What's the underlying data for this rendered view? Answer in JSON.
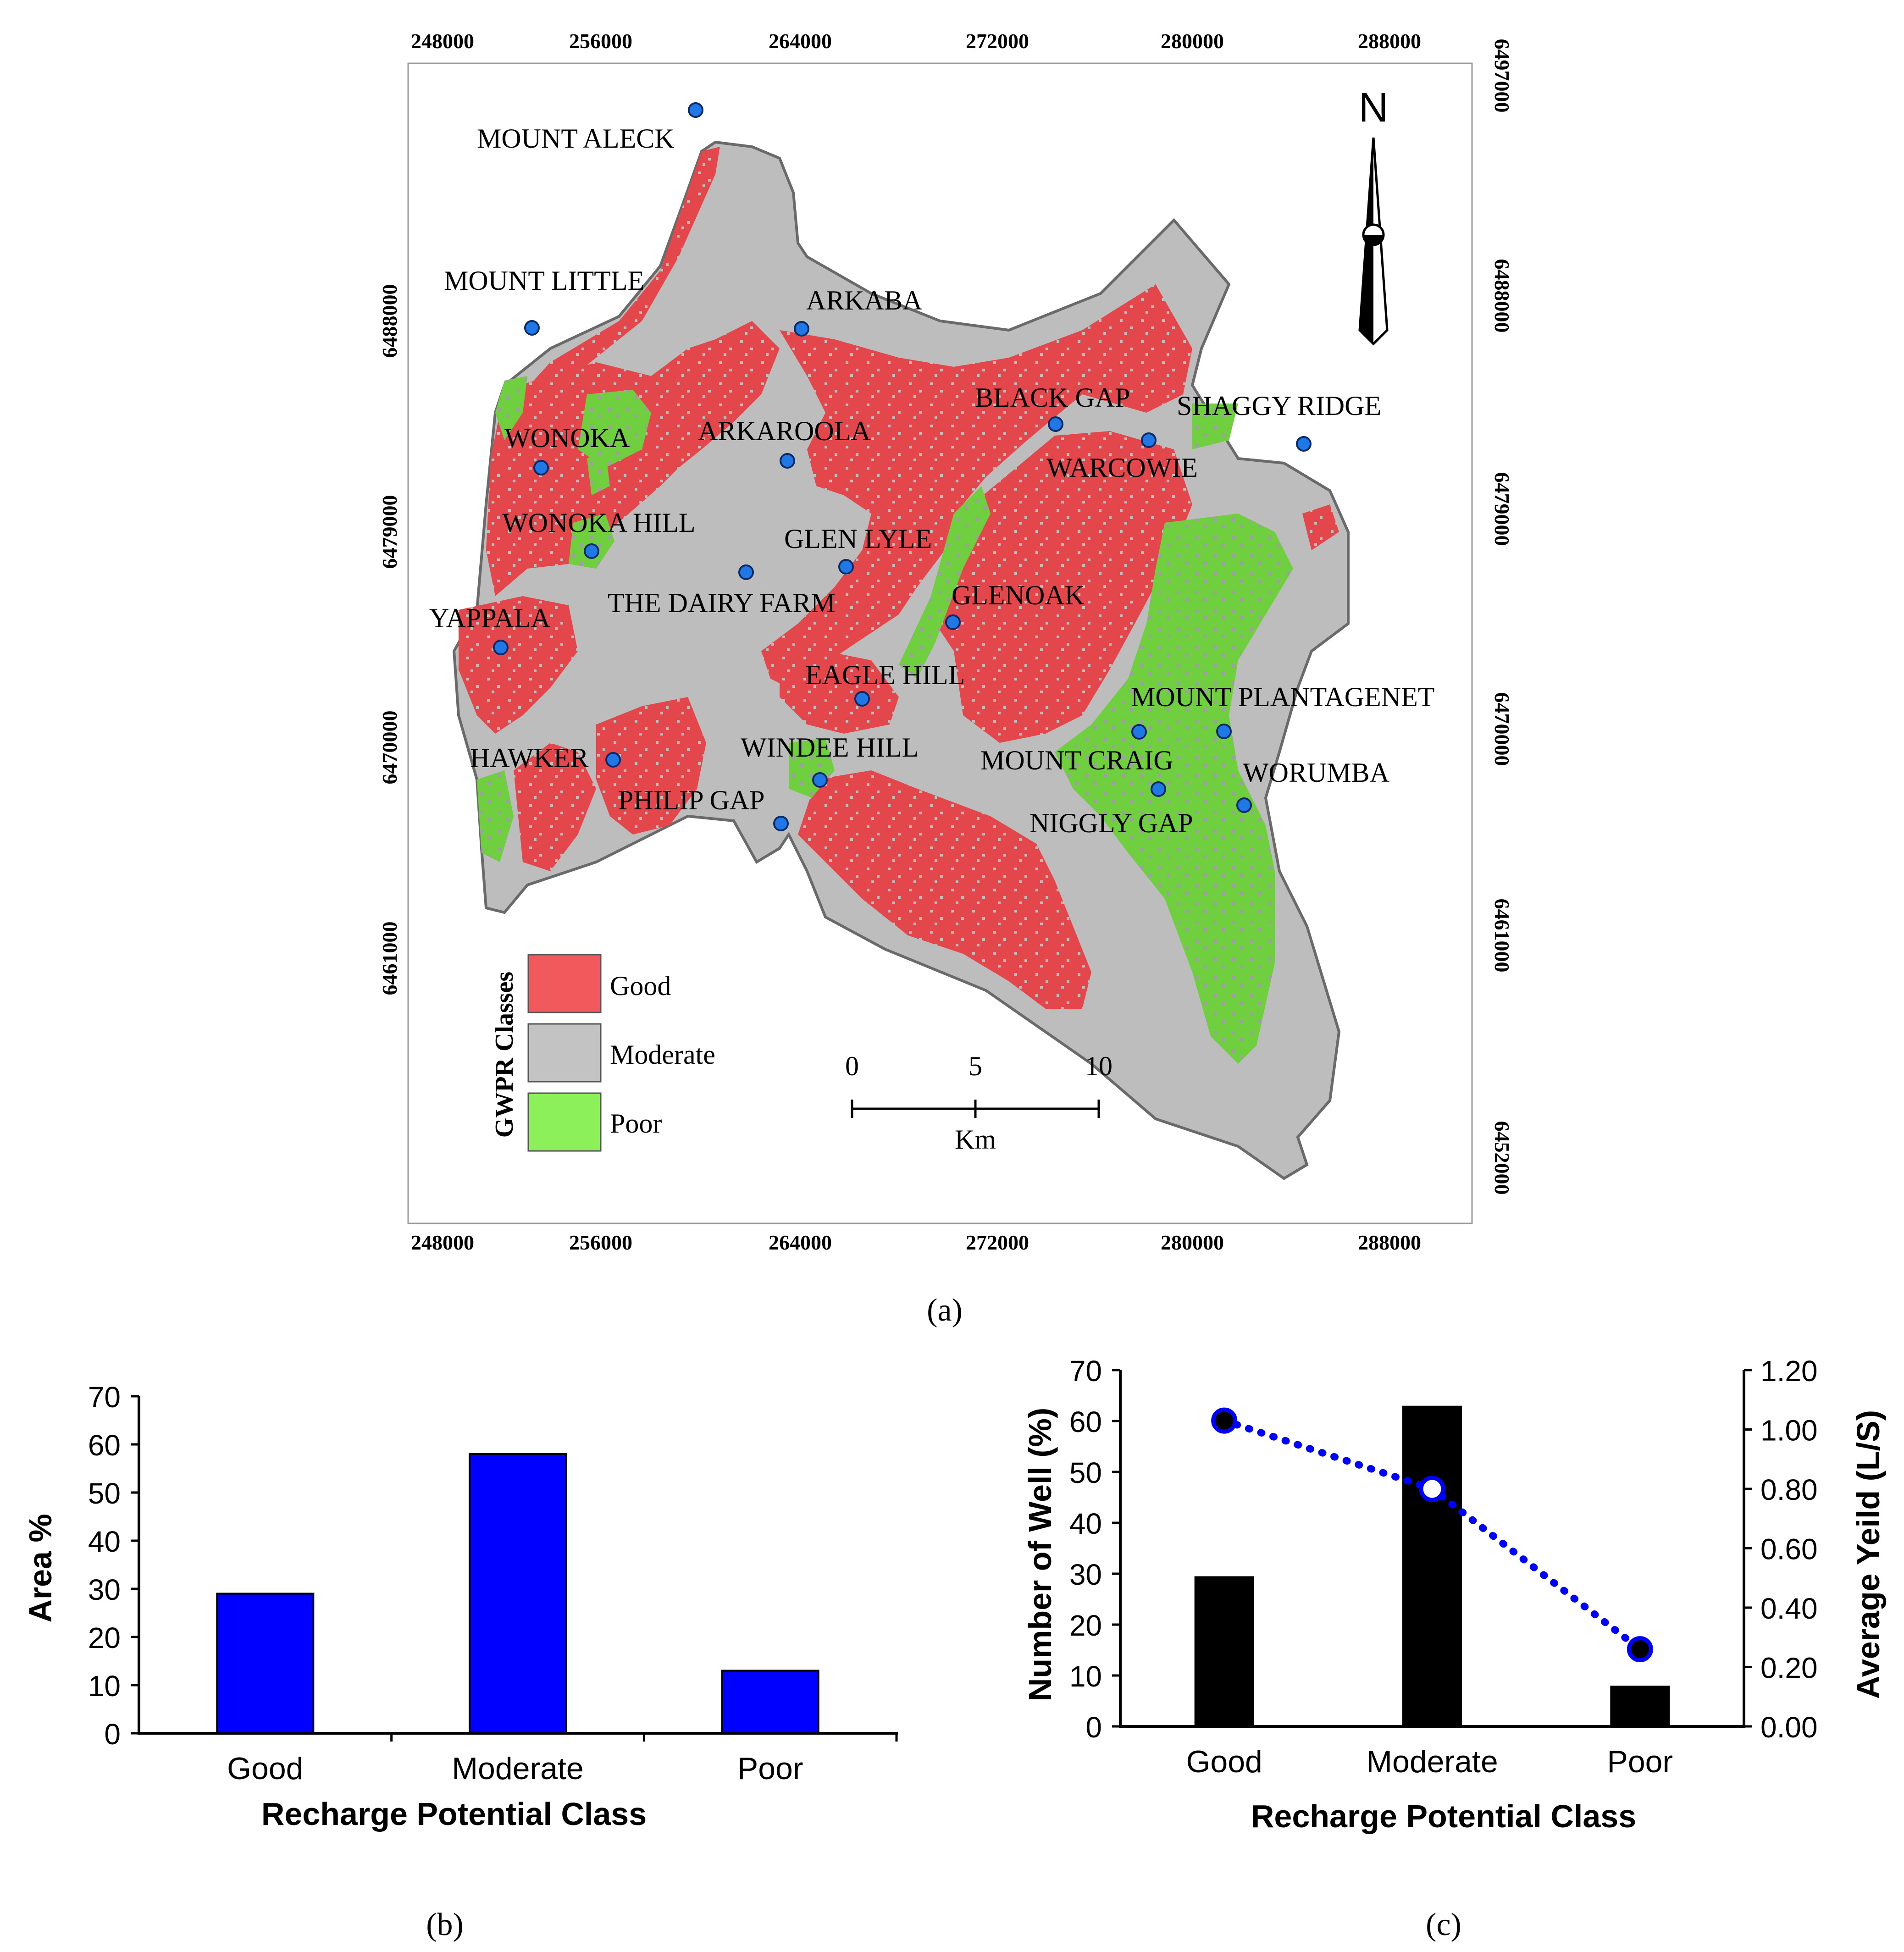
{
  "map": {
    "x_ticks": [
      "248000",
      "256000",
      "264000",
      "272000",
      "280000",
      "288000"
    ],
    "y_ticks": [
      "6497000",
      "6488000",
      "6479000",
      "6470000",
      "6461000",
      "6452000"
    ],
    "north_label": "N",
    "legend": {
      "title": "GWPR Classes",
      "items": [
        {
          "label": "Good",
          "color": "#f2595d"
        },
        {
          "label": "Moderate",
          "color": "#c3c3c3"
        },
        {
          "label": "Poor",
          "color": "#8cf05a"
        }
      ]
    },
    "scale_bar": {
      "ticks": [
        "0",
        "5",
        "10"
      ],
      "unit": "Km"
    },
    "places": [
      "MOUNT ALECK",
      "MOUNT LITTLE",
      "ARKABA",
      "BLACK GAP",
      "SHAGGY RIDGE",
      "WONOKA",
      "ARKAROOLA",
      "WARCOWIE",
      "WONOKA HILL",
      "GLEN LYLE",
      "THE DAIRY FARM",
      "GLENOAK",
      "YAPPALA",
      "EAGLE HILL",
      "MOUNT PLANTAGENET",
      "HAWKER",
      "WINDEE HILL",
      "MOUNT CRAIG",
      "WORUMBA",
      "PHILIP GAP",
      "NIGGLY GAP"
    ],
    "caption": "(a)"
  },
  "chart_data": [
    {
      "type": "bar",
      "categories": [
        "Good",
        "Moderate",
        "Poor"
      ],
      "values": [
        29,
        58,
        13
      ],
      "ylim": [
        0,
        70
      ],
      "yticks": [
        "0",
        "10",
        "20",
        "30",
        "40",
        "50",
        "60",
        "70"
      ],
      "xlabel": "Recharge Potential Class",
      "ylabel": "Area %",
      "bar_color": "#0000ff",
      "caption": "(b)"
    },
    {
      "type": "bar",
      "categories": [
        "Good",
        "Moderate",
        "Poor"
      ],
      "values": [
        29.5,
        63,
        8
      ],
      "ylim": [
        0,
        70
      ],
      "yticks": [
        "0",
        "10",
        "20",
        "30",
        "40",
        "50",
        "60",
        "70"
      ],
      "bar_color": "#000000",
      "line_values": [
        1.03,
        0.8,
        0.26
      ],
      "y2lim": [
        0,
        1.2
      ],
      "y2ticks": [
        "0.00",
        "0.20",
        "0.40",
        "0.60",
        "0.80",
        "1.00",
        "1.20"
      ],
      "line_color": "#0000ff",
      "xlabel": "Recharge Potential Class",
      "ylabel": "Number of Well (%)",
      "y2label": "Average Yeild (L/S)",
      "caption": "(c)"
    }
  ]
}
